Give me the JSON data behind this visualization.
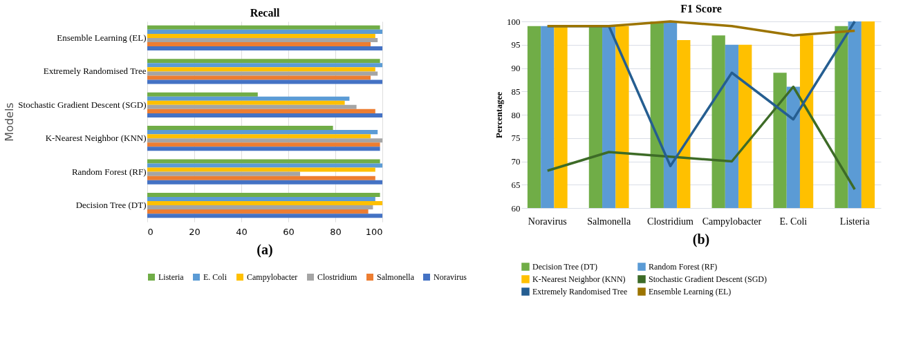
{
  "chart_data": [
    {
      "type": "bar",
      "orientation": "horizontal",
      "title": "Recall",
      "ylabel": "Models",
      "categories": [
        "Ensemble Learning (EL)",
        "Extremely Randomised Tree",
        "Stochastic Gradient Descent (SGD)",
        "K-Nearest Neighbor (KNN)",
        "Random Forest (RF)",
        "Decision Tree (DT)"
      ],
      "series": [
        {
          "name": "Listeria",
          "color": "#70ad47",
          "values": [
            99,
            99,
            47,
            79,
            99,
            99
          ]
        },
        {
          "name": "E. Coli",
          "color": "#5b9bd5",
          "values": [
            100,
            100,
            86,
            98,
            100,
            97
          ]
        },
        {
          "name": "Campylobacter",
          "color": "#ffc000",
          "values": [
            97,
            97,
            84,
            95,
            97,
            100
          ]
        },
        {
          "name": "Clostridium",
          "color": "#a5a5a5",
          "values": [
            98,
            98,
            89,
            100,
            65,
            96
          ]
        },
        {
          "name": "Salmonella",
          "color": "#ed7d31",
          "values": [
            95,
            95,
            97,
            99,
            97,
            94
          ]
        },
        {
          "name": "Noravirus",
          "color": "#4472c4",
          "values": [
            100,
            100,
            100,
            99,
            100,
            100
          ]
        }
      ],
      "xlim": [
        0,
        100
      ],
      "xticks": [
        0,
        20,
        40,
        60,
        80,
        100
      ],
      "grid": "x",
      "legend": "bottom",
      "annotations": [
        "(a)"
      ]
    },
    {
      "type": "bar",
      "title": "F1 Score",
      "ylabel": "Percentagee",
      "categories": [
        "Noravirus",
        "Salmonella",
        "Clostridium",
        "Campylobacter",
        "E. Coli",
        "Listeria"
      ],
      "series": [
        {
          "name": "Decision Tree (DT)",
          "color": "#70ad47",
          "values": [
            99,
            99,
            100,
            97,
            89,
            99
          ]
        },
        {
          "name": "Random Forest (RF)",
          "color": "#5b9bd5",
          "values": [
            99,
            99,
            100,
            95,
            86,
            100
          ]
        },
        {
          "name": "K-Nearest Neighbor (KNN)",
          "color": "#ffc000",
          "values": [
            99,
            99,
            96,
            95,
            97,
            100
          ]
        },
        {
          "name": "Stochastic Gradient Descent (SGD)",
          "type": "line",
          "color": "#3d6b27",
          "values": [
            68,
            72,
            71,
            70,
            86,
            64
          ]
        },
        {
          "name": "Extremely Randomised Tree",
          "type": "line",
          "color": "#255e91",
          "values": [
            99,
            99,
            69,
            89,
            79,
            100
          ]
        },
        {
          "name": "Ensemble Learning (EL)",
          "type": "line",
          "color": "#9c7400",
          "values": [
            99,
            99,
            100,
            99,
            97,
            98
          ]
        }
      ],
      "ylim": [
        60,
        100
      ],
      "yticks": [
        60,
        65,
        70,
        75,
        80,
        85,
        90,
        95,
        100
      ],
      "grid": "y",
      "legend": "bottom",
      "annotations": [
        "(b)"
      ]
    }
  ]
}
